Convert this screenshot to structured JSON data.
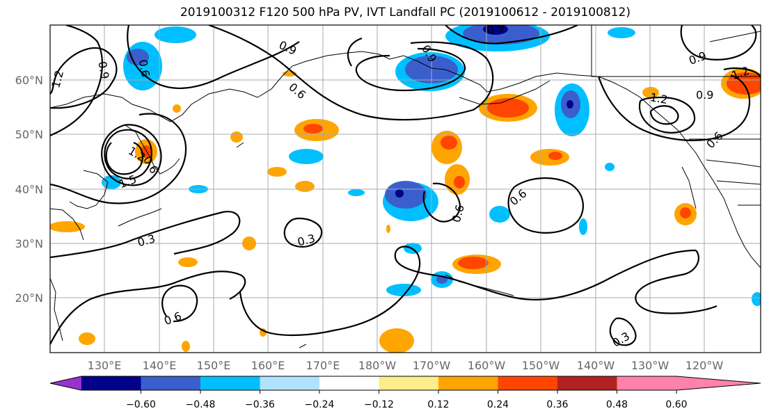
{
  "title": "2019100312 F120 500 hPa PV, IVT Landfall PC (2019100612 - 2019100812)",
  "lat_labels": [
    "60°N",
    "50°N",
    "40°N",
    "30°N",
    "20°N"
  ],
  "lon_labels": [
    "130°E",
    "140°E",
    "150°E",
    "160°E",
    "170°E",
    "180°W",
    "170°W",
    "160°W",
    "150°W",
    "140°W",
    "130°W",
    "120°W"
  ],
  "contour_labels": [
    "1.2",
    "0.9",
    "0.6",
    "1.5",
    "1.2",
    "0.9",
    "0.6",
    "0.9",
    "0.6",
    "0.3",
    "0.3",
    "0.6",
    "0.6",
    "0.6",
    "0.3",
    "0.9",
    "1.2",
    "0.9",
    "0.6",
    "0.9",
    "1.2"
  ],
  "colorbar": {
    "ticks": [
      "−0.60",
      "−0.48",
      "−0.36",
      "−0.24",
      "−0.12",
      "0.12",
      "0.24",
      "0.36",
      "0.48",
      "0.60"
    ],
    "colors": [
      "#9932cc",
      "#00008b",
      "#3a5fcd",
      "#00bfff",
      "#b0e2ff",
      "#ffffff",
      "#ffec8b",
      "#ffa500",
      "#ff4500",
      "#b22222",
      "#ff82ab"
    ]
  },
  "colors": {
    "neg_dark": "#00008b",
    "neg_mid": "#3a5fcd",
    "neg": "#00bfff",
    "neg_light": "#b0e2ff",
    "pos_light": "#ffec8b",
    "pos": "#ffa500",
    "pos_mid": "#ff4500",
    "pos_dark": "#b22222"
  }
}
